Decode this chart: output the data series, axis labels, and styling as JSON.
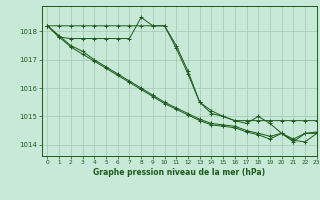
{
  "xlabel": "Graphe pression niveau de la mer (hPa)",
  "xlim": [
    -0.5,
    23
  ],
  "ylim": [
    1013.6,
    1018.9
  ],
  "yticks": [
    1014,
    1015,
    1016,
    1017,
    1018
  ],
  "xticks": [
    0,
    1,
    2,
    3,
    4,
    5,
    6,
    7,
    8,
    9,
    10,
    11,
    12,
    13,
    14,
    15,
    16,
    17,
    18,
    19,
    20,
    21,
    22,
    23
  ],
  "background_color": "#c8e8d8",
  "grid_color": "#a0c8b0",
  "line_color": "#1a5c1a",
  "series": [
    {
      "x": [
        0,
        1,
        2,
        3,
        4,
        5,
        6,
        7,
        8,
        9,
        10,
        11,
        12,
        13,
        14,
        15,
        16,
        17,
        18,
        19,
        20,
        21,
        22,
        23
      ],
      "y": [
        1018.2,
        1018.2,
        1018.2,
        1018.2,
        1018.2,
        1018.2,
        1018.2,
        1018.2,
        1018.2,
        1018.2,
        1018.2,
        1017.5,
        1016.6,
        1015.5,
        1015.2,
        1015.0,
        1014.85,
        1014.85,
        1014.85,
        1014.85,
        1014.85,
        1014.85,
        1014.85,
        1014.85
      ]
    },
    {
      "x": [
        0,
        1,
        2,
        3,
        4,
        5,
        6,
        7,
        8,
        9,
        10,
        11,
        12,
        13,
        14,
        15,
        16,
        17,
        18,
        19,
        20,
        21,
        22,
        23
      ],
      "y": [
        1018.2,
        1017.8,
        1017.75,
        1017.75,
        1017.75,
        1017.75,
        1017.75,
        1017.75,
        1018.5,
        1018.2,
        1018.2,
        1017.4,
        1016.5,
        1015.5,
        1015.1,
        1015.0,
        1014.85,
        1014.75,
        1015.0,
        1014.75,
        1014.4,
        1014.1,
        1014.4,
        1014.4
      ]
    },
    {
      "x": [
        0,
        1,
        2,
        3,
        4,
        5,
        6,
        7,
        8,
        9,
        10,
        11,
        12,
        13,
        14,
        15,
        16,
        17,
        18,
        19,
        20,
        21,
        22,
        23
      ],
      "y": [
        1018.2,
        1017.85,
        1017.5,
        1017.3,
        1017.0,
        1016.75,
        1016.5,
        1016.25,
        1016.0,
        1015.75,
        1015.5,
        1015.3,
        1015.1,
        1014.9,
        1014.75,
        1014.7,
        1014.65,
        1014.5,
        1014.4,
        1014.3,
        1014.4,
        1014.2,
        1014.4,
        1014.45
      ]
    },
    {
      "x": [
        0,
        1,
        2,
        3,
        4,
        5,
        6,
        7,
        8,
        9,
        10,
        11,
        12,
        13,
        14,
        15,
        16,
        17,
        18,
        19,
        20,
        21,
        22,
        23
      ],
      "y": [
        1018.2,
        1017.8,
        1017.45,
        1017.2,
        1016.95,
        1016.7,
        1016.45,
        1016.2,
        1015.95,
        1015.7,
        1015.45,
        1015.25,
        1015.05,
        1014.85,
        1014.7,
        1014.65,
        1014.6,
        1014.45,
        1014.35,
        1014.2,
        1014.4,
        1014.15,
        1014.1,
        1014.4
      ]
    }
  ]
}
